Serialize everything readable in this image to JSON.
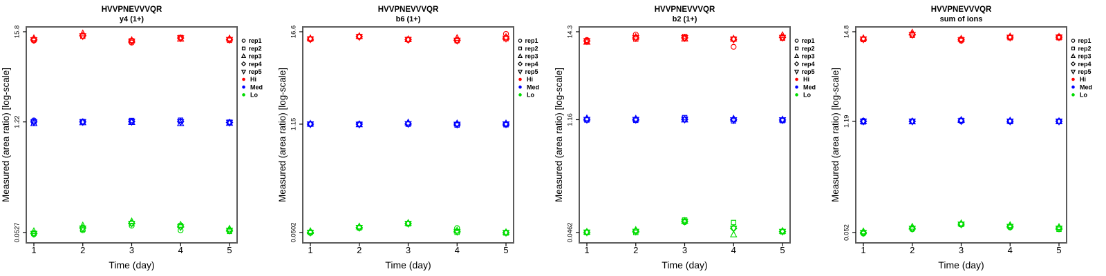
{
  "figure": {
    "background": "#ffffff",
    "peptide": "HVVPNEVVVQR",
    "xlabel": "Time (day)",
    "ylabel": "Measured (area ratio) [log-scale]",
    "x_ticks": [
      "1",
      "2",
      "3",
      "4",
      "5"
    ]
  },
  "legend": {
    "position": "right",
    "reps": [
      {
        "label": "rep1",
        "marker": "circle"
      },
      {
        "label": "rep2",
        "marker": "square"
      },
      {
        "label": "rep3",
        "marker": "triangle-up"
      },
      {
        "label": "rep4",
        "marker": "diamond"
      },
      {
        "label": "rep5",
        "marker": "triangle-down"
      }
    ],
    "levels": [
      {
        "label": "Hi",
        "color": "#FF0000"
      },
      {
        "label": "Med",
        "color": "#0000FF"
      },
      {
        "label": "Lo",
        "color": "#00DC00"
      }
    ]
  },
  "chart_data": [
    {
      "type": "scatter",
      "title": "HVVPNEVVVQR",
      "subtitle": "y4 (1+)",
      "xlabel": "Time (day)",
      "ylabel": "Measured (area ratio) [log-scale]",
      "x_days": [
        1,
        2,
        3,
        4,
        5
      ],
      "y_scale": "log",
      "grid": false,
      "legend_position": "right",
      "y_tick_values": [
        15.8,
        1.22,
        0.0527
      ],
      "y_tick_labels": [
        "15.8",
        "1.22",
        "0.0527"
      ],
      "rep_order": [
        "rep1",
        "rep2",
        "rep3",
        "rep4",
        "rep5"
      ],
      "series": [
        {
          "name": "Hi",
          "color": "#FF0000",
          "values_by_day": [
            [
              12.3,
              12.6,
              13.1,
              12.6,
              12.5
            ],
            [
              14.0,
              13.9,
              15.0,
              14.1,
              14.0
            ],
            [
              11.6,
              12.2,
              12.4,
              12.1,
              12.0
            ],
            [
              13.2,
              13.4,
              12.9,
              13.2,
              13.2
            ],
            [
              12.7,
              12.4,
              13.0,
              12.7,
              12.6
            ]
          ]
        },
        {
          "name": "Med",
          "color": "#0000FF",
          "values_by_day": [
            [
              1.27,
              1.22,
              1.17,
              1.22,
              1.21
            ],
            [
              1.22,
              1.23,
              1.2,
              1.22,
              1.22
            ],
            [
              1.23,
              1.27,
              1.21,
              1.23,
              1.23
            ],
            [
              1.23,
              1.28,
              1.17,
              1.23,
              1.22
            ],
            [
              1.2,
              1.21,
              1.18,
              1.2,
              1.2
            ]
          ]
        },
        {
          "name": "Lo",
          "color": "#00DC00",
          "values_by_day": [
            [
              0.05,
              0.0515,
              0.0545,
              0.0512,
              0.051
            ],
            [
              0.056,
              0.058,
              0.064,
              0.06,
              0.0595
            ],
            [
              0.064,
              0.068,
              0.072,
              0.0685,
              0.068
            ],
            [
              0.056,
              0.064,
              0.0655,
              0.062,
              0.0615
            ],
            [
              0.055,
              0.0545,
              0.0585,
              0.0565,
              0.056
            ]
          ]
        }
      ]
    },
    {
      "type": "scatter",
      "title": "HVVPNEVVVQR",
      "subtitle": "b6 (1+)",
      "xlabel": "Time (day)",
      "ylabel": "Measured (area ratio) [log-scale]",
      "x_days": [
        1,
        2,
        3,
        4,
        5
      ],
      "y_scale": "log",
      "grid": false,
      "legend_position": "right",
      "y_tick_values": [
        16.6,
        1.15,
        0.0502
      ],
      "y_tick_labels": [
        "16.6",
        "1.15",
        "0.0502"
      ],
      "rep_order": [
        "rep1",
        "rep2",
        "rep3",
        "rep4",
        "rep5"
      ],
      "series": [
        {
          "name": "Hi",
          "color": "#FF0000",
          "values_by_day": [
            [
              13.3,
              13.5,
              13.7,
              13.4,
              13.4
            ],
            [
              14.3,
              14.5,
              14.6,
              14.4,
              14.3
            ],
            [
              13.1,
              13.3,
              13.3,
              13.2,
              13.2
            ],
            [
              12.7,
              12.9,
              13.8,
              13.0,
              12.9
            ],
            [
              15.6,
              13.6,
              14.2,
              13.8,
              13.7
            ]
          ]
        },
        {
          "name": "Med",
          "color": "#0000FF",
          "values_by_day": [
            [
              1.16,
              1.15,
              1.16,
              1.15,
              1.15
            ],
            [
              1.14,
              1.15,
              1.14,
              1.15,
              1.14
            ],
            [
              1.16,
              1.15,
              1.2,
              1.16,
              1.16
            ],
            [
              1.15,
              1.12,
              1.17,
              1.15,
              1.14
            ],
            [
              1.15,
              1.13,
              1.17,
              1.15,
              1.15
            ]
          ]
        },
        {
          "name": "Lo",
          "color": "#00DC00",
          "values_by_day": [
            [
              0.0495,
              0.0505,
              0.052,
              0.0505,
              0.0503
            ],
            [
              0.057,
              0.0575,
              0.0595,
              0.058,
              0.0578
            ],
            [
              0.065,
              0.0645,
              0.066,
              0.0652,
              0.065
            ],
            [
              0.057,
              0.0505,
              0.053,
              0.052,
              0.0515
            ],
            [
              0.05,
              0.0495,
              0.0505,
              0.05,
              0.05
            ]
          ]
        }
      ]
    },
    {
      "type": "scatter",
      "title": "HVVPNEVVVQR",
      "subtitle": "b2 (1+)",
      "xlabel": "Time (day)",
      "ylabel": "Measured (area ratio) [log-scale]",
      "x_days": [
        1,
        2,
        3,
        4,
        5
      ],
      "y_scale": "log",
      "grid": false,
      "legend_position": "right",
      "y_tick_values": [
        14.3,
        1.16,
        0.0462
      ],
      "y_tick_labels": [
        "14.3",
        "1.16",
        "0.0462"
      ],
      "rep_order": [
        "rep1",
        "rep2",
        "rep3",
        "rep4",
        "rep5"
      ],
      "series": [
        {
          "name": "Hi",
          "color": "#FF0000",
          "values_by_day": [
            [
              11.3,
              10.9,
              10.7,
              11.0,
              11.0
            ],
            [
              13.2,
              11.6,
              12.3,
              12.0,
              12.0
            ],
            [
              11.9,
              12.5,
              11.7,
              12.0,
              12.0
            ],
            [
              9.3,
              11.6,
              11.7,
              11.5,
              11.5
            ],
            [
              12.1,
              11.9,
              12.9,
              12.2,
              12.1
            ]
          ]
        },
        {
          "name": "Med",
          "color": "#0000FF",
          "values_by_day": [
            [
              1.16,
              1.15,
              1.2,
              1.17,
              1.16
            ],
            [
              1.16,
              1.14,
              1.19,
              1.16,
              1.16
            ],
            [
              1.17,
              1.23,
              1.16,
              1.17,
              1.17
            ],
            [
              1.16,
              1.12,
              1.19,
              1.16,
              1.15
            ],
            [
              1.15,
              1.13,
              1.16,
              1.15,
              1.15
            ]
          ]
        },
        {
          "name": "Lo",
          "color": "#00DC00",
          "values_by_day": [
            [
              0.0468,
              0.0462,
              0.047,
              0.0466,
              0.0465
            ],
            [
              0.048,
              0.0462,
              0.0495,
              0.0478,
              0.0476
            ],
            [
              0.062,
              0.066,
              0.064,
              0.0638,
              0.0635
            ],
            [
              0.0525,
              0.0615,
              0.0435,
              0.052,
              0.0518
            ],
            [
              0.0478,
              0.0472,
              0.0482,
              0.0476,
              0.0475
            ]
          ]
        }
      ]
    },
    {
      "type": "scatter",
      "title": "HVVPNEVVVQR",
      "subtitle": "sum of ions",
      "xlabel": "Time (day)",
      "ylabel": "Measured (area ratio) [log-scale]",
      "x_days": [
        1,
        2,
        3,
        4,
        5
      ],
      "y_scale": "log",
      "grid": false,
      "legend_position": "right",
      "y_tick_values": [
        14.8,
        1.19,
        0.052
      ],
      "y_tick_labels": [
        "14.8",
        "1.19",
        "0.052"
      ],
      "rep_order": [
        "rep1",
        "rep2",
        "rep3",
        "rep4",
        "rep5"
      ],
      "series": [
        {
          "name": "Hi",
          "color": "#FF0000",
          "values_by_day": [
            [
              12.0,
              11.9,
              12.3,
              12.0,
              12.0
            ],
            [
              13.6,
              13.4,
              14.4,
              13.7,
              13.6
            ],
            [
              11.5,
              11.9,
              12.1,
              11.8,
              11.7
            ],
            [
              12.6,
              12.5,
              12.9,
              12.7,
              12.6
            ],
            [
              12.9,
              12.5,
              12.8,
              12.7,
              12.7
            ]
          ]
        },
        {
          "name": "Med",
          "color": "#0000FF",
          "values_by_day": [
            [
              1.21,
              1.17,
              1.19,
              1.19,
              1.19
            ],
            [
              1.19,
              1.19,
              1.18,
              1.19,
              1.19
            ],
            [
              1.19,
              1.22,
              1.23,
              1.2,
              1.2
            ],
            [
              1.19,
              1.18,
              1.21,
              1.19,
              1.19
            ],
            [
              1.19,
              1.18,
              1.19,
              1.19,
              1.19
            ]
          ]
        },
        {
          "name": "Lo",
          "color": "#00DC00",
          "values_by_day": [
            [
              0.0505,
              0.052,
              0.0535,
              0.0518,
              0.0516
            ],
            [
              0.057,
              0.058,
              0.061,
              0.0585,
              0.0582
            ],
            [
              0.065,
              0.0655,
              0.0672,
              0.0658,
              0.0655
            ],
            [
              0.06,
              0.0615,
              0.0638,
              0.0618,
              0.0615
            ],
            [
              0.0585,
              0.057,
              0.0605,
              0.0588,
              0.0585
            ]
          ]
        }
      ]
    }
  ]
}
